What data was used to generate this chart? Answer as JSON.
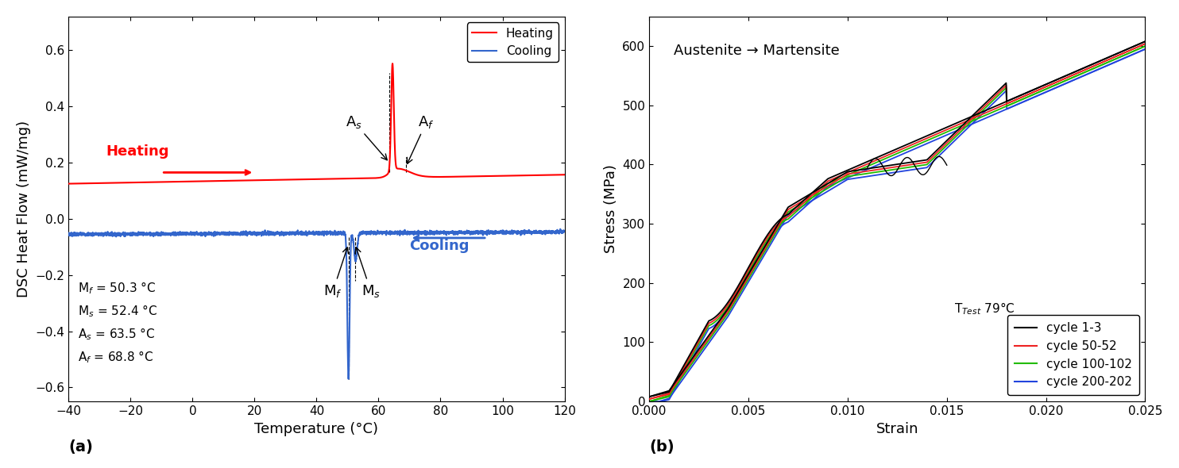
{
  "panel_a": {
    "xlabel": "Temperature (°C)",
    "ylabel": "DSC Heat Flow (mW/mg)",
    "xlim": [
      -40,
      120
    ],
    "ylim": [
      -0.65,
      0.72
    ],
    "xticks": [
      -40,
      -20,
      0,
      20,
      40,
      60,
      80,
      100,
      120
    ],
    "yticks": [
      -0.6,
      -0.4,
      -0.2,
      0.0,
      0.2,
      0.4,
      0.6
    ],
    "heating_color": "#FF0000",
    "cooling_color": "#3366CC",
    "label": "(a)",
    "Mf": 50.3,
    "Ms": 52.4,
    "As": 63.5,
    "Af": 68.8,
    "text_lines": [
      "M$_f$ = 50.3 °C",
      "M$_s$ = 52.4 °C",
      "A$_s$ = 63.5 °C",
      "A$_f$ = 68.8 °C"
    ]
  },
  "panel_b": {
    "title": "Austenite → Martensite",
    "xlabel": "Strain",
    "ylabel": "Stress (MPa)",
    "xlim": [
      0.0,
      0.025
    ],
    "ylim": [
      0,
      650
    ],
    "xticks": [
      0.0,
      0.005,
      0.01,
      0.015,
      0.02,
      0.025
    ],
    "yticks": [
      0,
      100,
      200,
      300,
      400,
      500,
      600
    ],
    "label": "(b)",
    "legend": [
      "cycle 1-3",
      "cycle 50-52",
      "cycle 100-102",
      "cycle 200-202"
    ],
    "legend_colors": [
      "#000000",
      "#EE2222",
      "#22BB00",
      "#2244DD"
    ],
    "ttest_label": "T$_{Test}$ 79°C"
  }
}
